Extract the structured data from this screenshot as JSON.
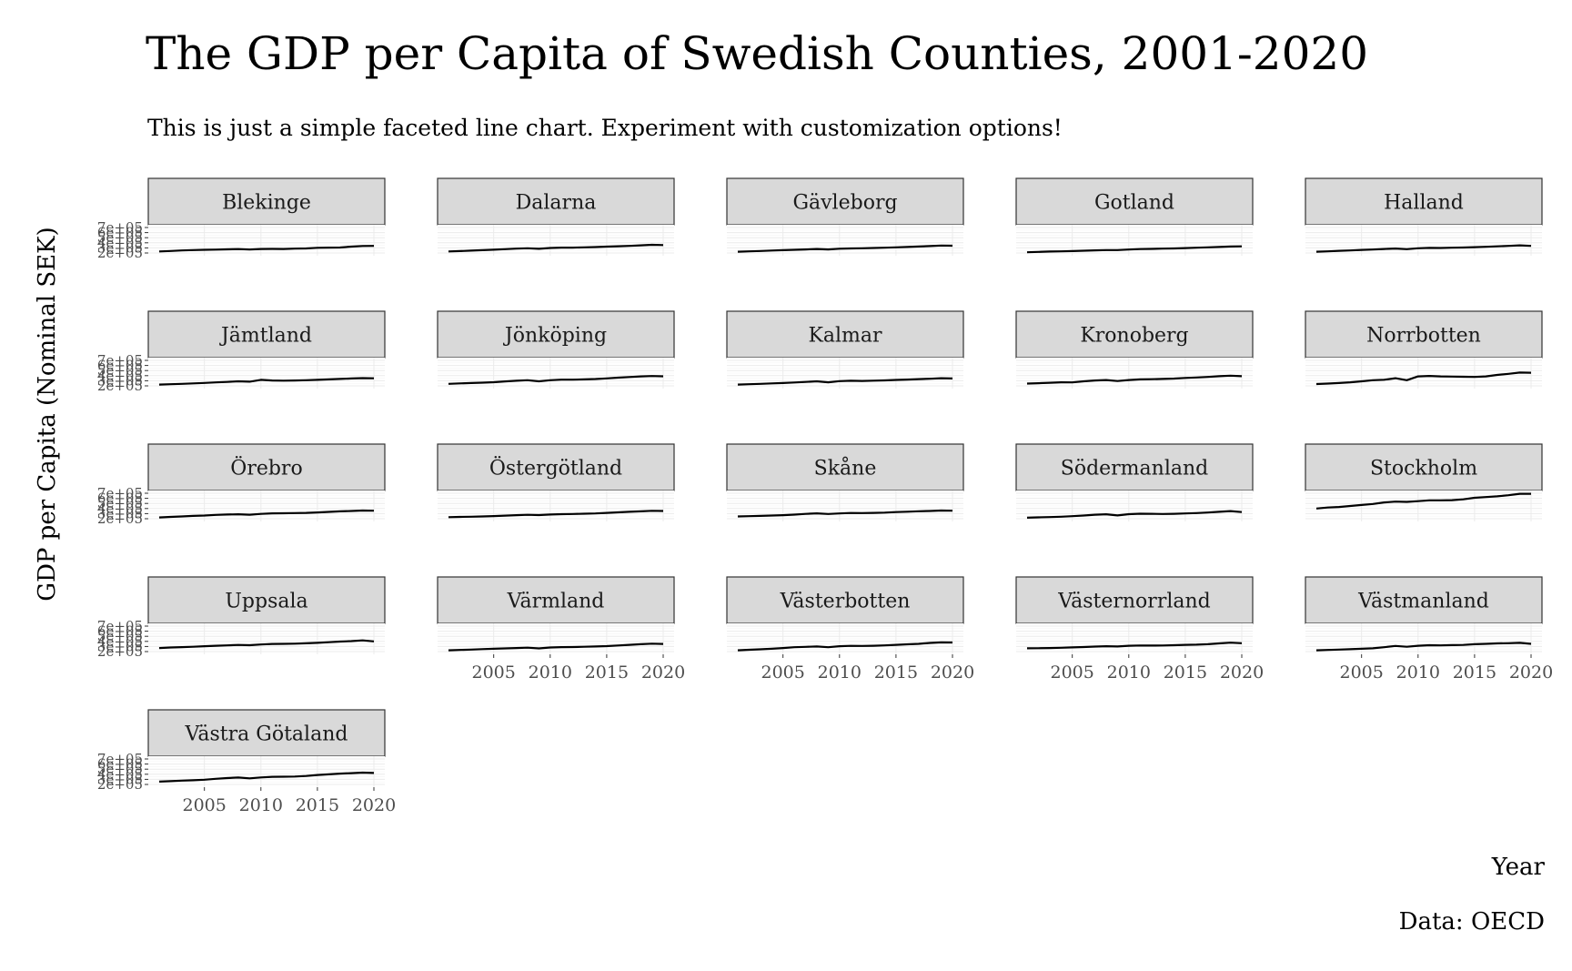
{
  "chart_data": {
    "type": "line",
    "title": "The GDP per Capita of Swedish Counties, 2001-2020",
    "subtitle": "This is just a simple faceted line chart. Experiment with customization options!",
    "xlabel": "Year",
    "ylabel": "GDP per Capita (Nominal SEK)",
    "caption": "Data: OECD",
    "x": [
      2001,
      2002,
      2003,
      2004,
      2005,
      2006,
      2007,
      2008,
      2009,
      2010,
      2011,
      2012,
      2013,
      2014,
      2015,
      2016,
      2017,
      2018,
      2019,
      2020
    ],
    "xticks": [
      2005,
      2010,
      2015,
      2020
    ],
    "xtick_labels": [
      "2005",
      "2010",
      "2015",
      "2020"
    ],
    "xlim": [
      2001,
      2020
    ],
    "ylim": [
      200000,
      700000
    ],
    "yticks": [
      200000,
      300000,
      400000,
      500000,
      600000,
      700000
    ],
    "ytick_labels": [
      "2e+05",
      "3e+05",
      "4e+05",
      "5e+05",
      "6e+05",
      "7e+05"
    ],
    "grid": true,
    "legend": "none",
    "series_color": "#000000",
    "panel_background": "#ffffff",
    "grid_color": "#ebebeb",
    "strip_fill": "#d9d9d9",
    "strip_border": "#333333",
    "series": [
      {
        "name": "Blekinge",
        "values": [
          230000,
          240000,
          250000,
          258000,
          262000,
          266000,
          272000,
          276000,
          268000,
          278000,
          280000,
          278000,
          285000,
          290000,
          302000,
          305000,
          308000,
          325000,
          338000,
          340000
        ]
      },
      {
        "name": "Dalarna",
        "values": [
          230000,
          238000,
          246000,
          255000,
          265000,
          275000,
          285000,
          292000,
          282000,
          298000,
          306000,
          305000,
          310000,
          316000,
          325000,
          333000,
          340000,
          350000,
          360000,
          355000
        ]
      },
      {
        "name": "Gävleborg",
        "values": [
          225000,
          233000,
          240000,
          248000,
          255000,
          263000,
          270000,
          278000,
          270000,
          284000,
          290000,
          292000,
          298000,
          304000,
          310000,
          318000,
          326000,
          336000,
          346000,
          342000
        ]
      },
      {
        "name": "Gotland",
        "values": [
          215000,
          222000,
          228000,
          232000,
          238000,
          245000,
          252000,
          258000,
          258000,
          268000,
          276000,
          280000,
          285000,
          290000,
          296000,
          304000,
          310000,
          318000,
          326000,
          330000
        ]
      },
      {
        "name": "Halland",
        "values": [
          225000,
          233000,
          242000,
          250000,
          260000,
          268000,
          278000,
          288000,
          275000,
          292000,
          300000,
          298000,
          304000,
          308000,
          314000,
          322000,
          330000,
          340000,
          350000,
          340000
        ]
      },
      {
        "name": "Jämtland",
        "values": [
          225000,
          232000,
          240000,
          248000,
          258000,
          268000,
          276000,
          290000,
          282000,
          318000,
          305000,
          302000,
          305000,
          310000,
          318000,
          326000,
          335000,
          345000,
          352000,
          348000
        ]
      },
      {
        "name": "Jönköping",
        "values": [
          240000,
          248000,
          256000,
          262000,
          272000,
          288000,
          300000,
          310000,
          290000,
          310000,
          322000,
          322000,
          326000,
          334000,
          346000,
          360000,
          374000,
          386000,
          392000,
          388000
        ]
      },
      {
        "name": "Kalmar",
        "values": [
          225000,
          232000,
          240000,
          248000,
          256000,
          266000,
          276000,
          290000,
          270000,
          292000,
          300000,
          296000,
          302000,
          308000,
          316000,
          324000,
          332000,
          340000,
          350000,
          345000
        ]
      },
      {
        "name": "Kronoberg",
        "values": [
          245000,
          252000,
          260000,
          270000,
          268000,
          290000,
          305000,
          315000,
          295000,
          315000,
          326000,
          330000,
          335000,
          342000,
          355000,
          365000,
          375000,
          390000,
          400000,
          390000
        ]
      },
      {
        "name": "Norrbotten",
        "values": [
          235000,
          245000,
          255000,
          270000,
          290000,
          310000,
          320000,
          350000,
          310000,
          385000,
          395000,
          385000,
          382000,
          378000,
          375000,
          385000,
          415000,
          435000,
          460000,
          458000
        ]
      },
      {
        "name": "Örebro",
        "values": [
          225000,
          235000,
          245000,
          255000,
          262000,
          275000,
          282000,
          288000,
          278000,
          294000,
          305000,
          308000,
          310000,
          314000,
          324000,
          334000,
          344000,
          352000,
          360000,
          358000
        ]
      },
      {
        "name": "Östergötland",
        "values": [
          230000,
          236000,
          240000,
          245000,
          252000,
          260000,
          270000,
          276000,
          272000,
          282000,
          290000,
          292000,
          298000,
          304000,
          315000,
          325000,
          335000,
          345000,
          355000,
          352000
        ]
      },
      {
        "name": "Skåne",
        "values": [
          245000,
          250000,
          255000,
          262000,
          270000,
          280000,
          295000,
          305000,
          292000,
          304000,
          312000,
          310000,
          314000,
          320000,
          330000,
          338000,
          346000,
          352000,
          360000,
          358000
        ]
      },
      {
        "name": "Södermanland",
        "values": [
          220000,
          226000,
          232000,
          240000,
          250000,
          262000,
          278000,
          288000,
          265000,
          290000,
          298000,
          296000,
          292000,
          296000,
          304000,
          310000,
          322000,
          336000,
          350000,
          330000
        ]
      },
      {
        "name": "Stockholm",
        "values": [
          400000,
          420000,
          430000,
          450000,
          470000,
          490000,
          520000,
          535000,
          530000,
          545000,
          560000,
          560000,
          565000,
          580000,
          610000,
          625000,
          640000,
          660000,
          690000,
          690000
        ]
      },
      {
        "name": "Uppsala",
        "values": [
          270000,
          280000,
          288000,
          295000,
          305000,
          315000,
          322000,
          330000,
          325000,
          340000,
          350000,
          352000,
          356000,
          362000,
          372000,
          384000,
          396000,
          405000,
          420000,
          400000
        ]
      },
      {
        "name": "Värmland",
        "values": [
          225000,
          232000,
          240000,
          248000,
          256000,
          262000,
          270000,
          276000,
          262000,
          280000,
          288000,
          290000,
          294000,
          300000,
          308000,
          320000,
          332000,
          345000,
          355000,
          350000
        ]
      },
      {
        "name": "Västerbotten",
        "values": [
          225000,
          235000,
          245000,
          255000,
          270000,
          285000,
          292000,
          300000,
          285000,
          305000,
          312000,
          310000,
          315000,
          322000,
          332000,
          342000,
          352000,
          370000,
          380000,
          378000
        ]
      },
      {
        "name": "Västernorrland",
        "values": [
          265000,
          266000,
          270000,
          275000,
          282000,
          290000,
          298000,
          305000,
          300000,
          314000,
          320000,
          318000,
          320000,
          325000,
          332000,
          336000,
          345000,
          360000,
          375000,
          365000
        ]
      },
      {
        "name": "Västmanland",
        "values": [
          225000,
          232000,
          240000,
          246000,
          255000,
          265000,
          285000,
          310000,
          295000,
          315000,
          325000,
          322000,
          326000,
          330000,
          345000,
          352000,
          360000,
          365000,
          372000,
          352000
        ]
      },
      {
        "name": "Västra Götaland",
        "values": [
          255000,
          265000,
          275000,
          283000,
          292000,
          310000,
          325000,
          335000,
          320000,
          338000,
          350000,
          352000,
          356000,
          366000,
          385000,
          398000,
          412000,
          422000,
          432000,
          425000
        ]
      }
    ]
  }
}
